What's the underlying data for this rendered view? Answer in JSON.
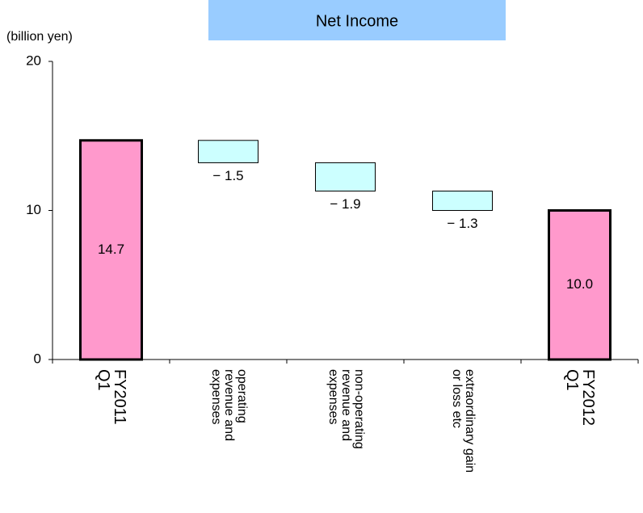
{
  "chart_data": {
    "type": "waterfall",
    "title": "Net Income",
    "ylabel": "(billion yen)",
    "categories": [
      "FY2011\nQ1",
      "operating\nrevenue and\nexpenses",
      "non-operating\nrevenue and\nexpenses",
      "extraordinary gain\nor loss etc",
      "FY2012\nQ1"
    ],
    "measures": [
      "total",
      "relative",
      "relative",
      "relative",
      "total"
    ],
    "values": [
      14.7,
      -1.5,
      -1.9,
      -1.3,
      10.0
    ],
    "value_labels": [
      "14.7",
      "− 1.5",
      "− 1.9",
      "− 1.3",
      "10.0"
    ],
    "total_color": "#ff99cc",
    "delta_color": "#ccffff",
    "title_color": "#99ccff",
    "ylim": [
      0,
      20
    ],
    "yticks": [
      0,
      10,
      20
    ]
  }
}
